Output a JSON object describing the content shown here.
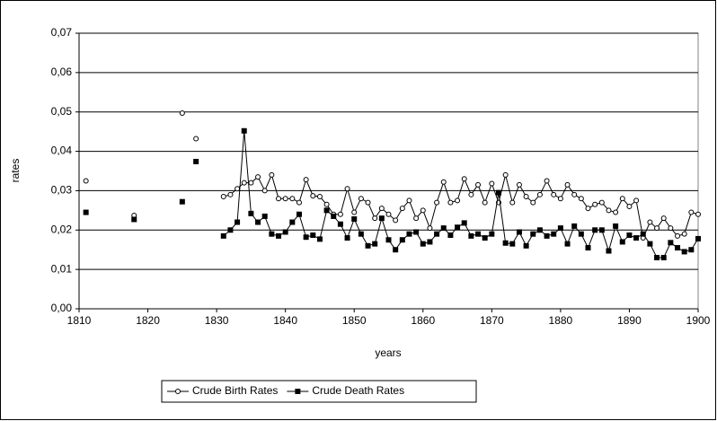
{
  "chart_data": {
    "type": "line",
    "x_label": "years",
    "y_label": "rates",
    "x": [
      1811,
      1812,
      1818,
      1819,
      1825,
      1826,
      1827,
      1828,
      1831,
      1832,
      1833,
      1834,
      1835,
      1836,
      1837,
      1838,
      1839,
      1840,
      1841,
      1842,
      1843,
      1844,
      1845,
      1846,
      1847,
      1848,
      1849,
      1850,
      1851,
      1852,
      1853,
      1854,
      1855,
      1856,
      1857,
      1858,
      1859,
      1860,
      1861,
      1862,
      1863,
      1864,
      1865,
      1866,
      1867,
      1868,
      1869,
      1870,
      1871,
      1872,
      1873,
      1874,
      1875,
      1876,
      1877,
      1878,
      1879,
      1880,
      1881,
      1882,
      1883,
      1884,
      1885,
      1886,
      1887,
      1888,
      1889,
      1890,
      1891,
      1892,
      1893,
      1894,
      1895,
      1896,
      1897,
      1898,
      1899,
      1900
    ],
    "series": [
      {
        "name": "Crude Birth Rates",
        "color": "#000000",
        "marker": "circle",
        "values": [
          0.0325,
          null,
          0.0237,
          null,
          0.0497,
          null,
          0.0432,
          null,
          0.0285,
          0.029,
          0.0305,
          0.032,
          0.032,
          0.0335,
          0.03,
          0.034,
          0.028,
          0.028,
          0.028,
          0.027,
          0.0328,
          0.0287,
          0.0285,
          0.0265,
          0.024,
          0.024,
          0.0305,
          0.0245,
          0.028,
          0.027,
          0.023,
          0.0255,
          0.024,
          0.0225,
          0.0255,
          0.0275,
          0.023,
          0.025,
          0.0205,
          0.027,
          0.0322,
          0.027,
          0.0275,
          0.033,
          0.029,
          0.0315,
          0.027,
          0.0318,
          0.027,
          0.034,
          0.027,
          0.0315,
          0.0285,
          0.027,
          0.029,
          0.0325,
          0.029,
          0.028,
          0.0315,
          0.029,
          0.028,
          0.0255,
          0.0265,
          0.027,
          0.025,
          0.0245,
          0.028,
          0.026,
          0.0275,
          0.018,
          0.022,
          0.0205,
          0.023,
          0.0205,
          0.0185,
          0.019,
          0.0245,
          0.024
        ]
      },
      {
        "name": "Crude Death Rates",
        "color": "#000000",
        "marker": "square",
        "values": [
          0.0245,
          null,
          0.0227,
          null,
          0.0272,
          null,
          0.0374,
          null,
          0.0185,
          0.02,
          0.022,
          0.0452,
          0.0242,
          0.022,
          0.0235,
          0.019,
          0.0185,
          0.0195,
          0.022,
          0.024,
          0.0182,
          0.0187,
          0.0177,
          0.025,
          0.0235,
          0.0215,
          0.018,
          0.0228,
          0.019,
          0.016,
          0.0165,
          0.023,
          0.0175,
          0.015,
          0.0175,
          0.019,
          0.0195,
          0.0165,
          0.017,
          0.019,
          0.0205,
          0.0187,
          0.0207,
          0.0218,
          0.0185,
          0.019,
          0.018,
          0.019,
          0.0295,
          0.0167,
          0.0165,
          0.0195,
          0.016,
          0.019,
          0.02,
          0.0185,
          0.019,
          0.0205,
          0.0165,
          0.021,
          0.019,
          0.0155,
          0.02,
          0.02,
          0.0147,
          0.021,
          0.017,
          0.0187,
          0.018,
          0.019,
          0.0165,
          0.013,
          0.013,
          0.0168,
          0.0155,
          0.0145,
          0.015,
          0.0178
        ]
      }
    ],
    "xlim": [
      1810,
      1900
    ],
    "xticks": [
      1810,
      1820,
      1830,
      1840,
      1850,
      1860,
      1870,
      1880,
      1890,
      1900
    ],
    "ylim": [
      0,
      0.07
    ],
    "yticks": [
      {
        "value": 0,
        "label": "0,00"
      },
      {
        "value": 0.01,
        "label": "0,01"
      },
      {
        "value": 0.02,
        "label": "0,02"
      },
      {
        "value": 0.03,
        "label": "0,03"
      },
      {
        "value": 0.04,
        "label": "0,04"
      },
      {
        "value": 0.05,
        "label": "0,05"
      },
      {
        "value": 0.06,
        "label": "0,06"
      },
      {
        "value": 0.07,
        "label": "0,07"
      }
    ],
    "grid": true,
    "legend": "bottom"
  }
}
